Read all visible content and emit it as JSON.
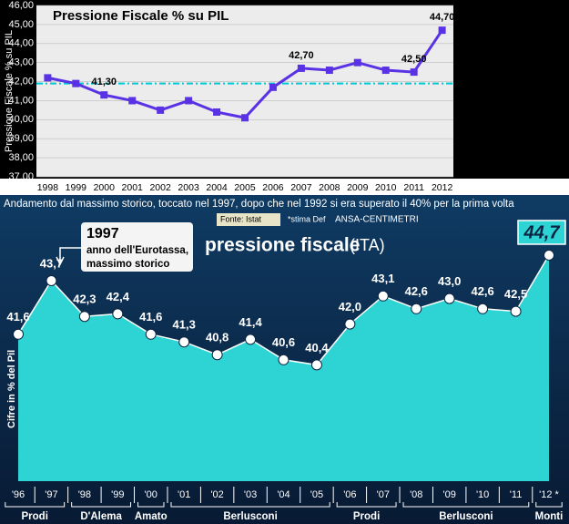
{
  "chart_data": [
    {
      "type": "line",
      "title": "Pressione Fiscale % su PIL",
      "y_label": "Pressione Fiscale % su PIL",
      "x": [
        1998,
        1999,
        2000,
        2001,
        2002,
        2003,
        2004,
        2005,
        2006,
        2007,
        2008,
        2009,
        2010,
        2011,
        2012
      ],
      "values": [
        42.2,
        41.9,
        41.3,
        41.0,
        40.5,
        41.0,
        40.4,
        40.1,
        41.7,
        42.7,
        42.6,
        43.0,
        42.6,
        42.5,
        44.7
      ],
      "value_labels": [
        null,
        null,
        "41,30",
        null,
        null,
        null,
        null,
        null,
        null,
        "42,70",
        null,
        null,
        null,
        "42,50",
        "44,70"
      ],
      "color": "#5a32e6",
      "reference_line": {
        "value": 41.9,
        "color": "#00c8d2"
      },
      "xlim": [
        1997.6,
        2012.4
      ],
      "ylim": [
        37,
        46
      ],
      "yticks": [
        {
          "value": 37,
          "label": "37,00"
        },
        {
          "value": 38,
          "label": "38,00"
        },
        {
          "value": 39,
          "label": "39,00"
        },
        {
          "value": 40,
          "label": "40,00"
        },
        {
          "value": 41,
          "label": "41,00"
        },
        {
          "value": 42,
          "label": "42,00"
        },
        {
          "value": 43,
          "label": "43,00"
        },
        {
          "value": 44,
          "label": "44,00"
        },
        {
          "value": 45,
          "label": "45,00"
        },
        {
          "value": 46,
          "label": "46,00"
        }
      ]
    },
    {
      "type": "area",
      "subtitle": "Andamento dal massimo storico, toccato nel 1997, dopo che nel 1992 si era superato il 40% per la prima volta",
      "source": "Fonte: Istat",
      "note": "*stima Def",
      "credit": "ANSA-CENTIMETRI",
      "title": "pressione fiscale",
      "title_suffix": "(ITA)",
      "y_label": "Cifre in % del Pil",
      "annotation": {
        "title": "1997",
        "text": [
          "anno dell'Eurotassa,",
          "massimo storico"
        ]
      },
      "categories": [
        "'96",
        "'97",
        "'98",
        "'99",
        "'00",
        "'01",
        "'02",
        "'03",
        "'04",
        "'05",
        "'06",
        "'07",
        "'08",
        "'09",
        "'10",
        "'11",
        "'12 *"
      ],
      "values": [
        41.6,
        43.7,
        42.3,
        42.4,
        41.6,
        41.3,
        40.8,
        41.4,
        40.6,
        40.4,
        42.0,
        43.1,
        42.6,
        43.0,
        42.6,
        42.5,
        44.7
      ],
      "value_labels": [
        "41,6",
        "43,7",
        "42,3",
        "42,4",
        "41,6",
        "41,3",
        "40,8",
        "41,4",
        "40,6",
        "40,4",
        "42,0",
        "43,1",
        "42,6",
        "43,0",
        "42,6",
        "42,5",
        "44,7"
      ],
      "color": "#2ed3d3",
      "governments": [
        {
          "name": "Prodi",
          "from": "'96",
          "to": "'97"
        },
        {
          "name": "D'Alema",
          "from": "'98",
          "to": "'99"
        },
        {
          "name": "Amato",
          "from": "'00",
          "to": "'00"
        },
        {
          "name": "Berlusconi",
          "from": "'01",
          "to": "'05"
        },
        {
          "name": "Prodi",
          "from": "'06",
          "to": "'07"
        },
        {
          "name": "Berlusconi",
          "from": "'08",
          "to": "'11"
        },
        {
          "name": "Monti",
          "from": "'12 *",
          "to": "'12 *"
        }
      ]
    }
  ]
}
